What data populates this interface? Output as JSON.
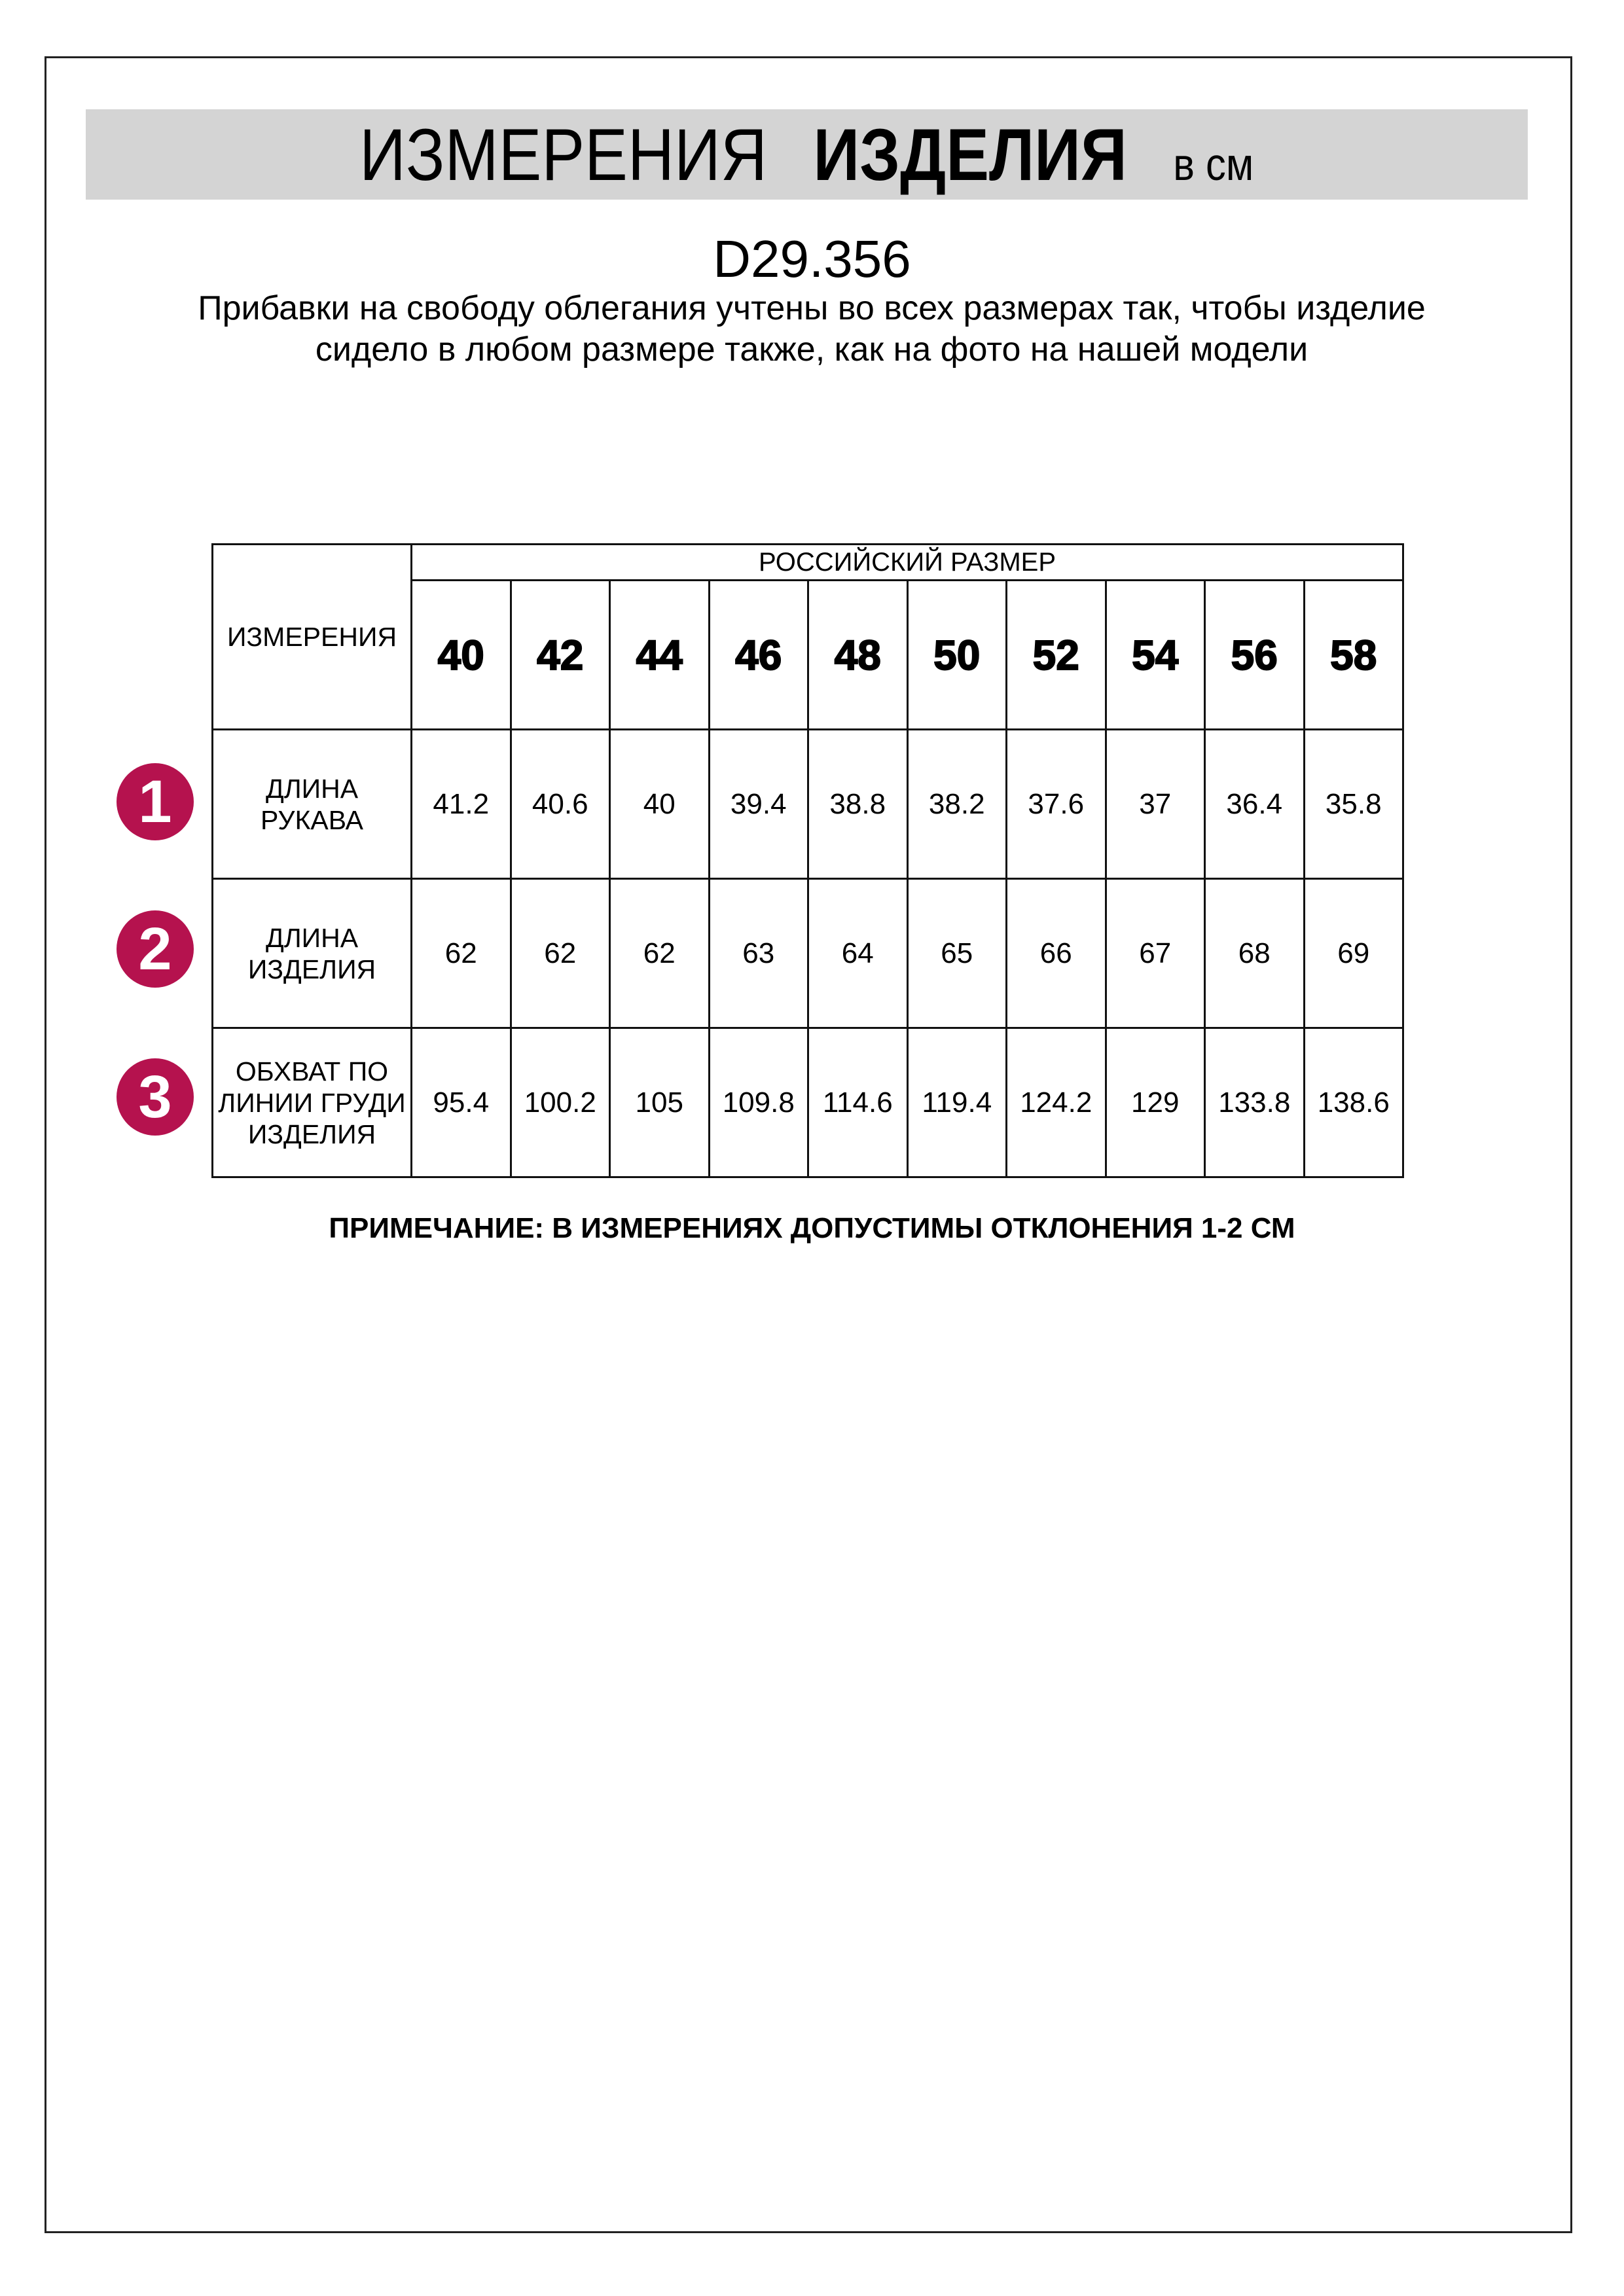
{
  "header": {
    "title_regular": "ИЗМЕРЕНИЯ",
    "title_bold": "ИЗДЕЛИЯ",
    "unit": "в см"
  },
  "article": "D29.356",
  "description": "Прибавки на свободу облегания учтены во всех размерах так, чтобы изделие сидело в любом размере также, как на фото на нашей модели",
  "colors": {
    "badge": "#b5124e",
    "header_band": "#d4d4d4"
  },
  "table": {
    "measure_header": "ИЗМЕРЕНИЯ",
    "size_group_header": "РОССИЙСКИЙ РАЗМЕР",
    "sizes": [
      "40",
      "42",
      "44",
      "46",
      "48",
      "50",
      "52",
      "54",
      "56",
      "58"
    ],
    "rows": [
      {
        "badge": "1",
        "label": "ДЛИНА РУКАВА",
        "values": [
          "41.2",
          "40.6",
          "40",
          "39.4",
          "38.8",
          "38.2",
          "37.6",
          "37",
          "36.4",
          "35.8"
        ]
      },
      {
        "badge": "2",
        "label": "ДЛИНА ИЗДЕЛИЯ",
        "values": [
          "62",
          "62",
          "62",
          "63",
          "64",
          "65",
          "66",
          "67",
          "68",
          "69"
        ]
      },
      {
        "badge": "3",
        "label": "ОБХВАТ ПО ЛИНИИ ГРУДИ ИЗДЕЛИЯ",
        "values": [
          "95.4",
          "100.2",
          "105",
          "109.8",
          "114.6",
          "119.4",
          "124.2",
          "129",
          "133.8",
          "138.6"
        ]
      }
    ]
  },
  "note": "ПРИМЕЧАНИЕ: В ИЗМЕРЕНИЯХ ДОПУСТИМЫ ОТКЛОНЕНИЯ 1-2 СМ"
}
